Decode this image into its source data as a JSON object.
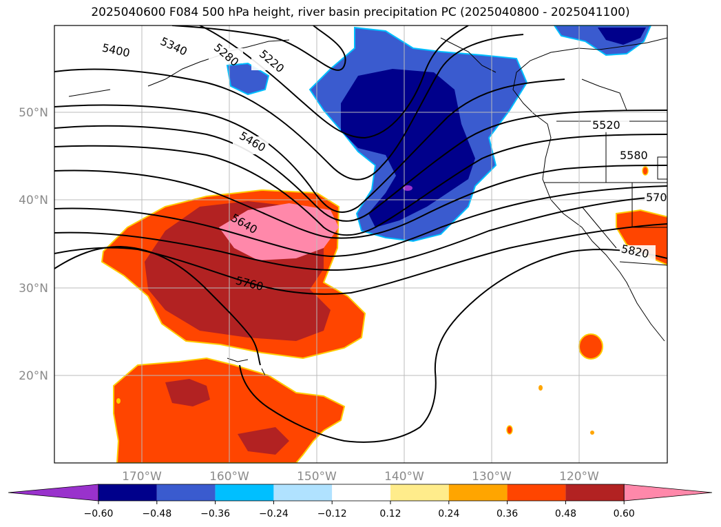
{
  "title": "2025040600 F084 500 hPa height, river basin precipitation PC (2025040800 - 2025041100)",
  "map": {
    "lat_labels": [
      "50°N",
      "40°N",
      "30°N",
      "20°N"
    ],
    "lon_labels": [
      "170°W",
      "160°W",
      "150°W",
      "140°W",
      "130°W",
      "120°W"
    ],
    "contour_labels": [
      "5400",
      "5340",
      "5280",
      "5220",
      "5460",
      "5640",
      "5760",
      "5520",
      "5580",
      "570",
      "5820"
    ]
  },
  "colorbar": {
    "ticks": [
      "−0.60",
      "−0.48",
      "−0.36",
      "−0.24",
      "−0.12",
      "0.12",
      "0.24",
      "0.36",
      "0.48",
      "0.60"
    ],
    "colors": [
      "#9932cc",
      "#00008b",
      "#3a5bcf",
      "#00bfff",
      "#b0e2ff",
      "#ffffff",
      "#ffec8b",
      "#ffa500",
      "#ff4500",
      "#b22222",
      "#ff88aa"
    ]
  }
}
